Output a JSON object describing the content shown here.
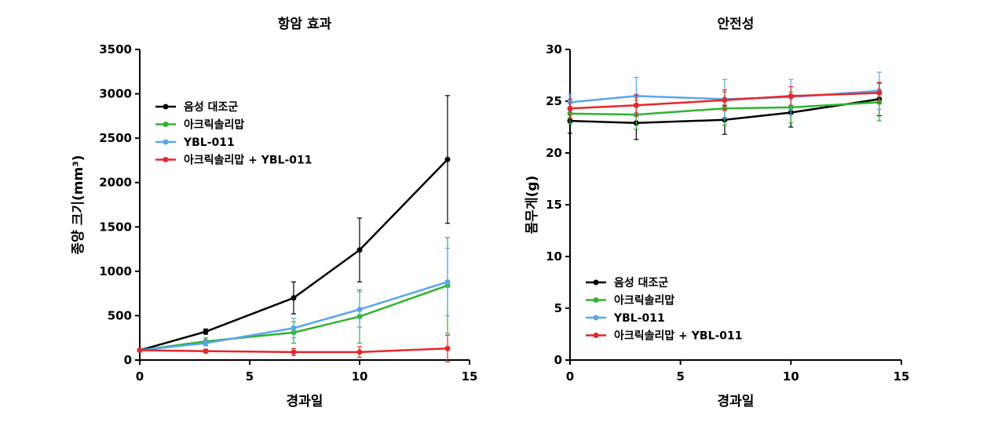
{
  "chart_data": [
    {
      "type": "line",
      "title": "항암 효과",
      "xlabel": "경과일",
      "ylabel": "종양 크기(mm³)",
      "xlim": [
        0,
        15
      ],
      "ylim": [
        0,
        3500
      ],
      "xticks": [
        0,
        5,
        10,
        15
      ],
      "yticks": [
        0,
        500,
        1000,
        1500,
        2000,
        2500,
        3000,
        3500
      ],
      "legend_position": "top-left",
      "x": [
        0,
        3,
        7,
        10,
        14
      ],
      "series": [
        {
          "name": "음성 대조군",
          "color": "#000000",
          "values": [
            110,
            320,
            700,
            1240,
            2260
          ],
          "error": [
            0,
            30,
            180,
            360,
            720
          ]
        },
        {
          "name": "아크릭솔리맙",
          "color": "#2db52d",
          "values": [
            110,
            210,
            310,
            490,
            840
          ],
          "error": [
            0,
            40,
            120,
            300,
            540
          ]
        },
        {
          "name": "YBL-011",
          "color": "#5aa5f0",
          "values": [
            110,
            190,
            360,
            570,
            880
          ],
          "error": [
            0,
            30,
            110,
            200,
            380
          ]
        },
        {
          "name": "아크릭솔리맙 + YBL-011",
          "color": "#e8262a",
          "values": [
            110,
            100,
            90,
            90,
            130
          ],
          "error": [
            0,
            20,
            40,
            60,
            150
          ]
        }
      ]
    },
    {
      "type": "line",
      "title": "안전성",
      "xlabel": "경과일",
      "ylabel": "몸무게(g)",
      "xlim": [
        0,
        15
      ],
      "ylim": [
        0,
        30
      ],
      "xticks": [
        0,
        5,
        10,
        15
      ],
      "yticks": [
        0,
        5,
        10,
        15,
        20,
        25,
        30
      ],
      "legend_position": "bottom-left",
      "x": [
        0,
        3,
        7,
        10,
        14
      ],
      "series": [
        {
          "name": "음성 대조군",
          "color": "#000000",
          "values": [
            23.1,
            22.9,
            23.2,
            23.9,
            25.2
          ],
          "error": [
            1.2,
            1.6,
            1.4,
            1.4,
            1.6
          ]
        },
        {
          "name": "아크릭솔리맙",
          "color": "#2db52d",
          "values": [
            23.8,
            23.7,
            24.3,
            24.4,
            24.9
          ],
          "error": [
            1.0,
            1.4,
            1.6,
            1.5,
            1.8
          ]
        },
        {
          "name": "YBL-011",
          "color": "#5aa5f0",
          "values": [
            24.9,
            25.5,
            25.2,
            25.4,
            26.0
          ],
          "error": [
            0.8,
            1.8,
            1.9,
            1.7,
            1.8
          ]
        },
        {
          "name": "아크릭솔리맙 + YBL-011",
          "color": "#e8262a",
          "values": [
            24.3,
            24.6,
            25.1,
            25.5,
            25.8
          ],
          "error": [
            0.9,
            1.0,
            1.0,
            0.9,
            1.0
          ]
        }
      ]
    }
  ]
}
